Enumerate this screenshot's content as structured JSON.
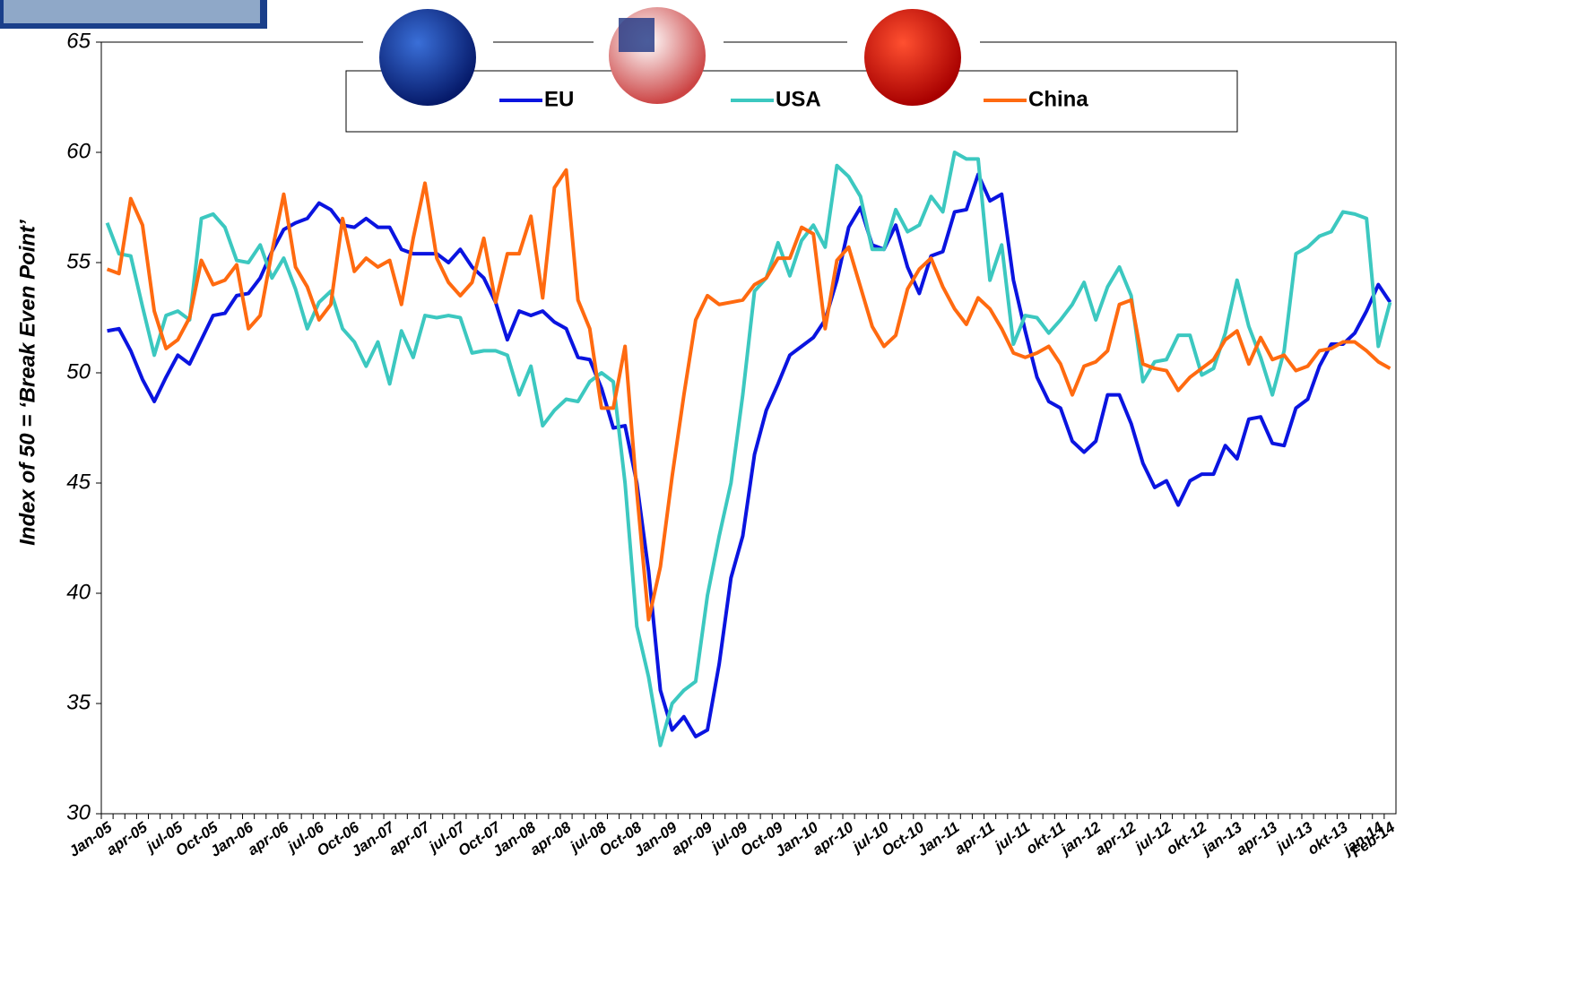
{
  "chart_data": {
    "type": "line",
    "y_label": "Index of 50 = ‘Break Even Point’",
    "categories": [
      "Jan-05",
      null,
      null,
      "apr-05",
      null,
      null,
      "jul-05",
      null,
      null,
      "Oct-05",
      null,
      null,
      "Jan-06",
      null,
      null,
      "apr-06",
      null,
      null,
      "jul-06",
      null,
      null,
      "Oct-06",
      null,
      null,
      "Jan-07",
      null,
      null,
      "apr-07",
      null,
      null,
      "jul-07",
      null,
      null,
      "Oct-07",
      null,
      null,
      "Jan-08",
      null,
      null,
      "apr-08",
      null,
      null,
      "jul-08",
      null,
      null,
      "Oct-08",
      null,
      null,
      "Jan-09",
      null,
      null,
      "apr-09",
      null,
      null,
      "jul-09",
      null,
      null,
      "Oct-09",
      null,
      null,
      "Jan-10",
      null,
      null,
      "apr-10",
      null,
      null,
      "jul-10",
      null,
      null,
      "Oct-10",
      null,
      null,
      "Jan-11",
      null,
      null,
      "apr-11",
      null,
      null,
      "jul-11",
      null,
      null,
      "okt-11",
      null,
      null,
      "jan-12",
      null,
      null,
      "apr-12",
      null,
      null,
      "jul-12",
      null,
      null,
      "okt-12",
      null,
      null,
      "jan-13",
      null,
      null,
      "apr-13",
      null,
      null,
      "jul-13",
      null,
      null,
      "okt-13",
      null,
      null,
      "jan-14",
      "Feb-14"
    ],
    "series": [
      {
        "name": "EU",
        "color": "#0a14e0",
        "values": [
          51.9,
          52.0,
          51.0,
          49.7,
          48.7,
          49.8,
          50.8,
          50.4,
          51.5,
          52.6,
          52.7,
          53.5,
          53.6,
          54.3,
          55.5,
          56.5,
          56.8,
          57.0,
          57.7,
          57.4,
          56.7,
          56.6,
          57.0,
          56.6,
          56.6,
          55.6,
          55.4,
          55.4,
          55.4,
          55.0,
          55.6,
          54.8,
          54.3,
          53.2,
          51.5,
          52.8,
          52.6,
          52.8,
          52.3,
          52.0,
          50.7,
          50.6,
          49.3,
          47.5,
          47.6,
          45.0,
          41.0,
          35.6,
          33.8,
          34.4,
          33.5,
          33.8,
          36.8,
          40.7,
          42.6,
          46.3,
          48.3,
          49.5,
          50.8,
          51.2,
          51.6,
          52.4,
          54.2,
          56.6,
          57.5,
          55.8,
          55.6,
          56.7,
          54.8,
          53.6,
          55.3,
          55.5,
          57.3,
          57.4,
          59.0,
          57.8,
          58.1,
          54.2,
          51.9,
          49.8,
          48.7,
          48.4,
          46.9,
          46.4,
          46.9,
          49.0,
          49.0,
          47.7,
          45.9,
          44.8,
          45.1,
          44.0,
          45.1,
          45.4,
          45.4,
          46.7,
          46.1,
          47.9,
          48.0,
          46.8,
          46.7,
          48.4,
          48.8,
          50.3,
          51.3,
          51.3,
          51.8,
          52.8,
          54.0,
          53.2
        ]
      },
      {
        "name": "USA",
        "color": "#3cc8c0",
        "values": [
          56.8,
          55.4,
          55.3,
          53.0,
          50.8,
          52.6,
          52.8,
          52.4,
          57.0,
          57.2,
          56.6,
          55.1,
          55.0,
          55.8,
          54.3,
          55.2,
          53.8,
          52.0,
          53.2,
          53.7,
          52.0,
          51.4,
          50.3,
          51.4,
          49.5,
          51.9,
          50.7,
          52.6,
          52.5,
          52.6,
          52.5,
          50.9,
          51.0,
          51.0,
          50.8,
          49.0,
          50.3,
          47.6,
          48.3,
          48.8,
          48.7,
          49.6,
          50.0,
          49.6,
          45.0,
          38.5,
          36.2,
          33.1,
          35.0,
          35.6,
          36.0,
          39.9,
          42.6,
          45.0,
          49.0,
          53.7,
          54.3,
          55.9,
          54.4,
          56.0,
          56.7,
          55.7,
          59.4,
          58.9,
          58.0,
          55.6,
          55.6,
          57.4,
          56.4,
          56.7,
          58.0,
          57.3,
          60.0,
          59.7,
          59.7,
          54.2,
          55.8,
          51.3,
          52.6,
          52.5,
          51.8,
          52.4,
          53.1,
          54.1,
          52.4,
          53.9,
          54.8,
          53.5,
          49.6,
          50.5,
          50.6,
          51.7,
          51.7,
          49.9,
          50.2,
          51.8,
          54.2,
          52.1,
          50.7,
          49.0,
          51.0,
          55.4,
          55.7,
          56.2,
          56.4,
          57.3,
          57.2,
          57.0,
          51.2,
          53.2
        ]
      },
      {
        "name": "China",
        "color": "#ff6a10",
        "values": [
          54.7,
          54.5,
          57.9,
          56.7,
          52.8,
          51.1,
          51.5,
          52.5,
          55.1,
          54.0,
          54.2,
          54.9,
          52.0,
          52.6,
          55.5,
          58.1,
          54.8,
          53.9,
          52.4,
          53.1,
          57.0,
          54.6,
          55.2,
          54.8,
          55.1,
          53.1,
          56.1,
          58.6,
          55.2,
          54.1,
          53.5,
          54.1,
          56.1,
          53.2,
          55.4,
          55.4,
          57.1,
          53.4,
          58.4,
          59.2,
          53.3,
          52.0,
          48.4,
          48.4,
          51.2,
          44.6,
          38.8,
          41.2,
          45.3,
          49.0,
          52.4,
          53.5,
          53.1,
          53.2,
          53.3,
          54.0,
          54.3,
          55.2,
          55.2,
          56.6,
          56.3,
          52.0,
          55.1,
          55.7,
          53.9,
          52.1,
          51.2,
          51.7,
          53.8,
          54.7,
          55.2,
          53.9,
          52.9,
          52.2,
          53.4,
          52.9,
          52.0,
          50.9,
          50.7,
          50.9,
          51.2,
          50.4,
          49.0,
          50.3,
          50.5,
          51.0,
          53.1,
          53.3,
          50.4,
          50.2,
          50.1,
          49.2,
          49.8,
          50.2,
          50.6,
          51.5,
          51.9,
          50.4,
          51.6,
          50.6,
          50.8,
          50.1,
          50.3,
          51.0,
          51.1,
          51.4,
          51.4,
          51.0,
          50.5,
          50.2
        ]
      }
    ],
    "ylim": [
      30,
      65
    ],
    "yticks": [
      30,
      35,
      40,
      45,
      50,
      55,
      60,
      65
    ],
    "grid": false,
    "legend": "top"
  }
}
